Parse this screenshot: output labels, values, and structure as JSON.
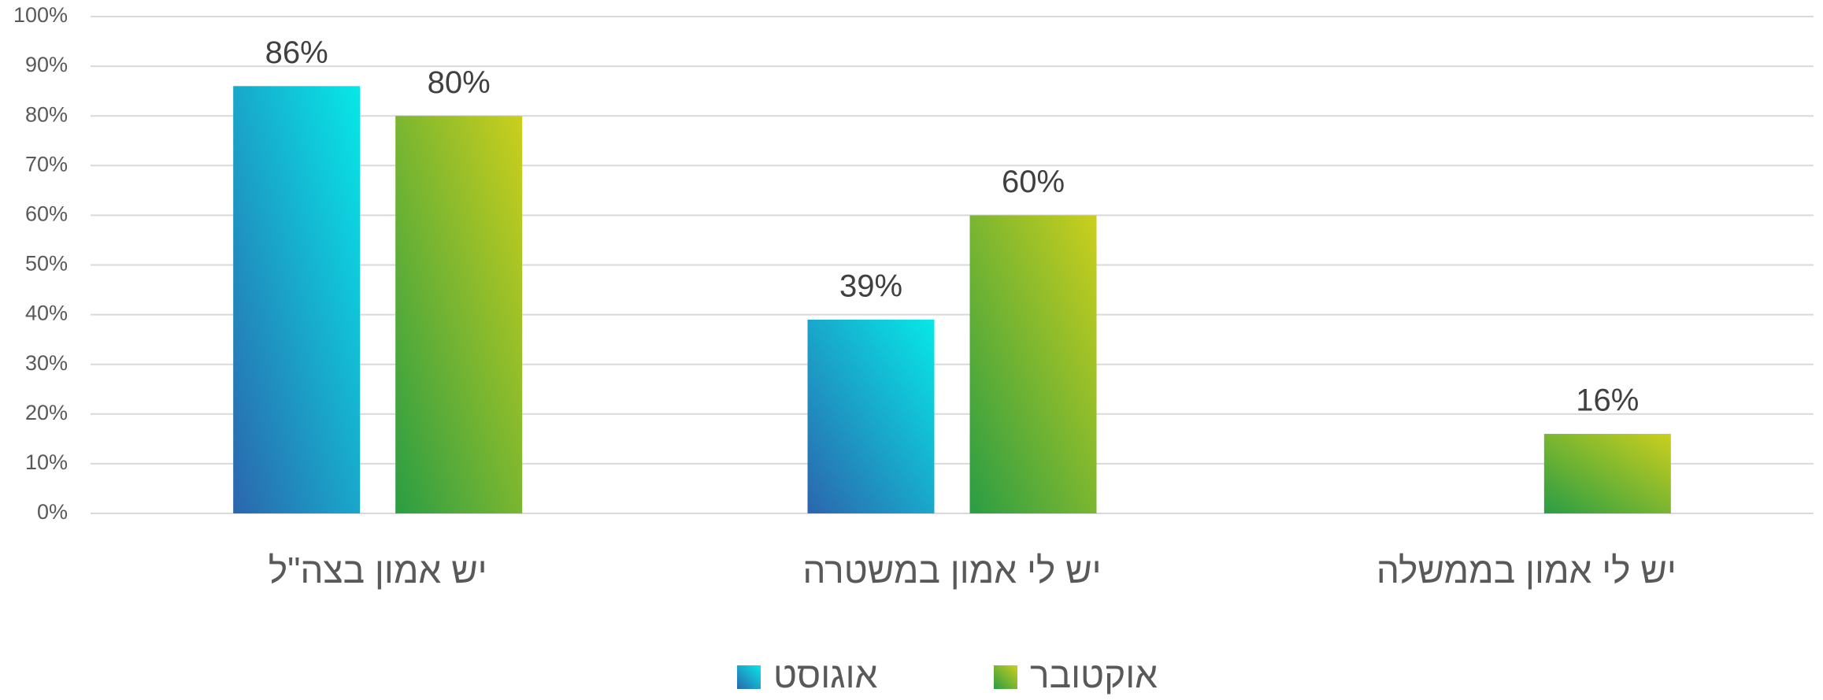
{
  "chart_data": {
    "type": "bar",
    "categories": [
      "יש אמון בצה\"ל",
      "יש לי אמון במשטרה",
      "יש לי אמון בממשלה"
    ],
    "series": [
      {
        "name": "אוגוסט",
        "gradient": [
          "#2b66ad",
          "#07e8e8"
        ],
        "values": [
          86,
          39,
          null
        ],
        "value_labels": [
          "86%",
          "39%",
          null
        ]
      },
      {
        "name": "אוקטובר",
        "gradient": [
          "#2a9d44",
          "#cbcf1d"
        ],
        "values": [
          80,
          60,
          16
        ],
        "value_labels": [
          "80%",
          "60%",
          "16%"
        ]
      }
    ],
    "ylim": [
      0,
      100
    ],
    "yticks": [
      {
        "value": 0,
        "label": "0%"
      },
      {
        "value": 10,
        "label": "10%"
      },
      {
        "value": 20,
        "label": "20%"
      },
      {
        "value": 30,
        "label": "30%"
      },
      {
        "value": 40,
        "label": "40%"
      },
      {
        "value": 50,
        "label": "50%"
      },
      {
        "value": 60,
        "label": "60%"
      },
      {
        "value": 70,
        "label": "70%"
      },
      {
        "value": 80,
        "label": "80%"
      },
      {
        "value": 90,
        "label": "90%"
      },
      {
        "value": 100,
        "label": "100%"
      }
    ],
    "grid": true,
    "legend": "bottom"
  }
}
